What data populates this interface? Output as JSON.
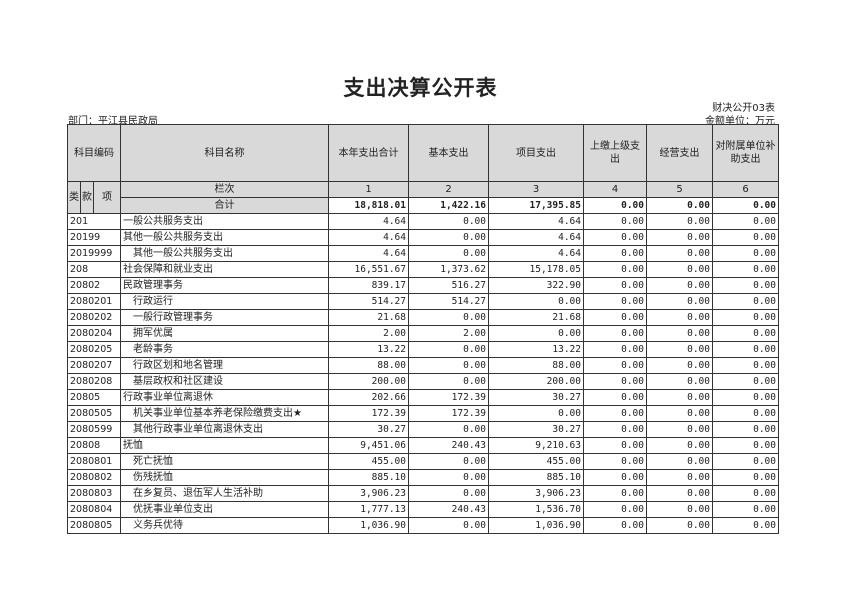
{
  "title": "支出决算公开表",
  "department": "部门：平江县民政局",
  "form_no": "财决公开03表",
  "unit": "金额单位：万元",
  "headers": {
    "code": "科目编码",
    "name": "科目名称",
    "cols": [
      "本年支出合计",
      "基本支出",
      "项目支出",
      "上缴上级支出",
      "经营支出",
      "对附属单位补助支出"
    ],
    "lei": "类",
    "kuan": "款",
    "xiang": "项",
    "lanci": "栏次",
    "col_numbers": [
      "1",
      "2",
      "3",
      "4",
      "5",
      "6"
    ]
  },
  "total": {
    "label": "合计",
    "values": [
      "18,818.01",
      "1,422.16",
      "17,395.85",
      "0.00",
      "0.00",
      "0.00"
    ]
  },
  "rows": [
    {
      "code": "201",
      "name": "一般公共服务支出",
      "level": 1,
      "values": [
        "4.64",
        "0.00",
        "4.64",
        "0.00",
        "0.00",
        "0.00"
      ]
    },
    {
      "code": "20199",
      "name": "其他一般公共服务支出",
      "level": 2,
      "values": [
        "4.64",
        "0.00",
        "4.64",
        "0.00",
        "0.00",
        "0.00"
      ]
    },
    {
      "code": "2019999",
      "name": "其他一般公共服务支出",
      "level": 3,
      "values": [
        "4.64",
        "0.00",
        "4.64",
        "0.00",
        "0.00",
        "0.00"
      ]
    },
    {
      "code": "208",
      "name": "社会保障和就业支出",
      "level": 1,
      "values": [
        "16,551.67",
        "1,373.62",
        "15,178.05",
        "0.00",
        "0.00",
        "0.00"
      ]
    },
    {
      "code": "20802",
      "name": "民政管理事务",
      "level": 2,
      "values": [
        "839.17",
        "516.27",
        "322.90",
        "0.00",
        "0.00",
        "0.00"
      ]
    },
    {
      "code": "2080201",
      "name": "行政运行",
      "level": 3,
      "values": [
        "514.27",
        "514.27",
        "0.00",
        "0.00",
        "0.00",
        "0.00"
      ]
    },
    {
      "code": "2080202",
      "name": "一般行政管理事务",
      "level": 3,
      "values": [
        "21.68",
        "0.00",
        "21.68",
        "0.00",
        "0.00",
        "0.00"
      ]
    },
    {
      "code": "2080204",
      "name": "拥军优属",
      "level": 3,
      "values": [
        "2.00",
        "2.00",
        "0.00",
        "0.00",
        "0.00",
        "0.00"
      ]
    },
    {
      "code": "2080205",
      "name": "老龄事务",
      "level": 3,
      "values": [
        "13.22",
        "0.00",
        "13.22",
        "0.00",
        "0.00",
        "0.00"
      ]
    },
    {
      "code": "2080207",
      "name": "行政区划和地名管理",
      "level": 3,
      "values": [
        "88.00",
        "0.00",
        "88.00",
        "0.00",
        "0.00",
        "0.00"
      ]
    },
    {
      "code": "2080208",
      "name": "基层政权和社区建设",
      "level": 3,
      "values": [
        "200.00",
        "0.00",
        "200.00",
        "0.00",
        "0.00",
        "0.00"
      ]
    },
    {
      "code": "20805",
      "name": "行政事业单位离退休",
      "level": 2,
      "values": [
        "202.66",
        "172.39",
        "30.27",
        "0.00",
        "0.00",
        "0.00"
      ]
    },
    {
      "code": "2080505",
      "name": "机关事业单位基本养老保险缴费支出★",
      "level": 3,
      "values": [
        "172.39",
        "172.39",
        "0.00",
        "0.00",
        "0.00",
        "0.00"
      ]
    },
    {
      "code": "2080599",
      "name": "其他行政事业单位离退休支出",
      "level": 3,
      "values": [
        "30.27",
        "0.00",
        "30.27",
        "0.00",
        "0.00",
        "0.00"
      ]
    },
    {
      "code": "20808",
      "name": "抚恤",
      "level": 2,
      "values": [
        "9,451.06",
        "240.43",
        "9,210.63",
        "0.00",
        "0.00",
        "0.00"
      ]
    },
    {
      "code": "2080801",
      "name": "死亡抚恤",
      "level": 3,
      "values": [
        "455.00",
        "0.00",
        "455.00",
        "0.00",
        "0.00",
        "0.00"
      ]
    },
    {
      "code": "2080802",
      "name": "伤残抚恤",
      "level": 3,
      "values": [
        "885.10",
        "0.00",
        "885.10",
        "0.00",
        "0.00",
        "0.00"
      ]
    },
    {
      "code": "2080803",
      "name": "在乡复员、退伍军人生活补助",
      "level": 3,
      "values": [
        "3,906.23",
        "0.00",
        "3,906.23",
        "0.00",
        "0.00",
        "0.00"
      ]
    },
    {
      "code": "2080804",
      "name": "优抚事业单位支出",
      "level": 3,
      "values": [
        "1,777.13",
        "240.43",
        "1,536.70",
        "0.00",
        "0.00",
        "0.00"
      ]
    },
    {
      "code": "2080805",
      "name": "义务兵优待",
      "level": 3,
      "values": [
        "1,036.90",
        "0.00",
        "1,036.90",
        "0.00",
        "0.00",
        "0.00"
      ]
    }
  ]
}
